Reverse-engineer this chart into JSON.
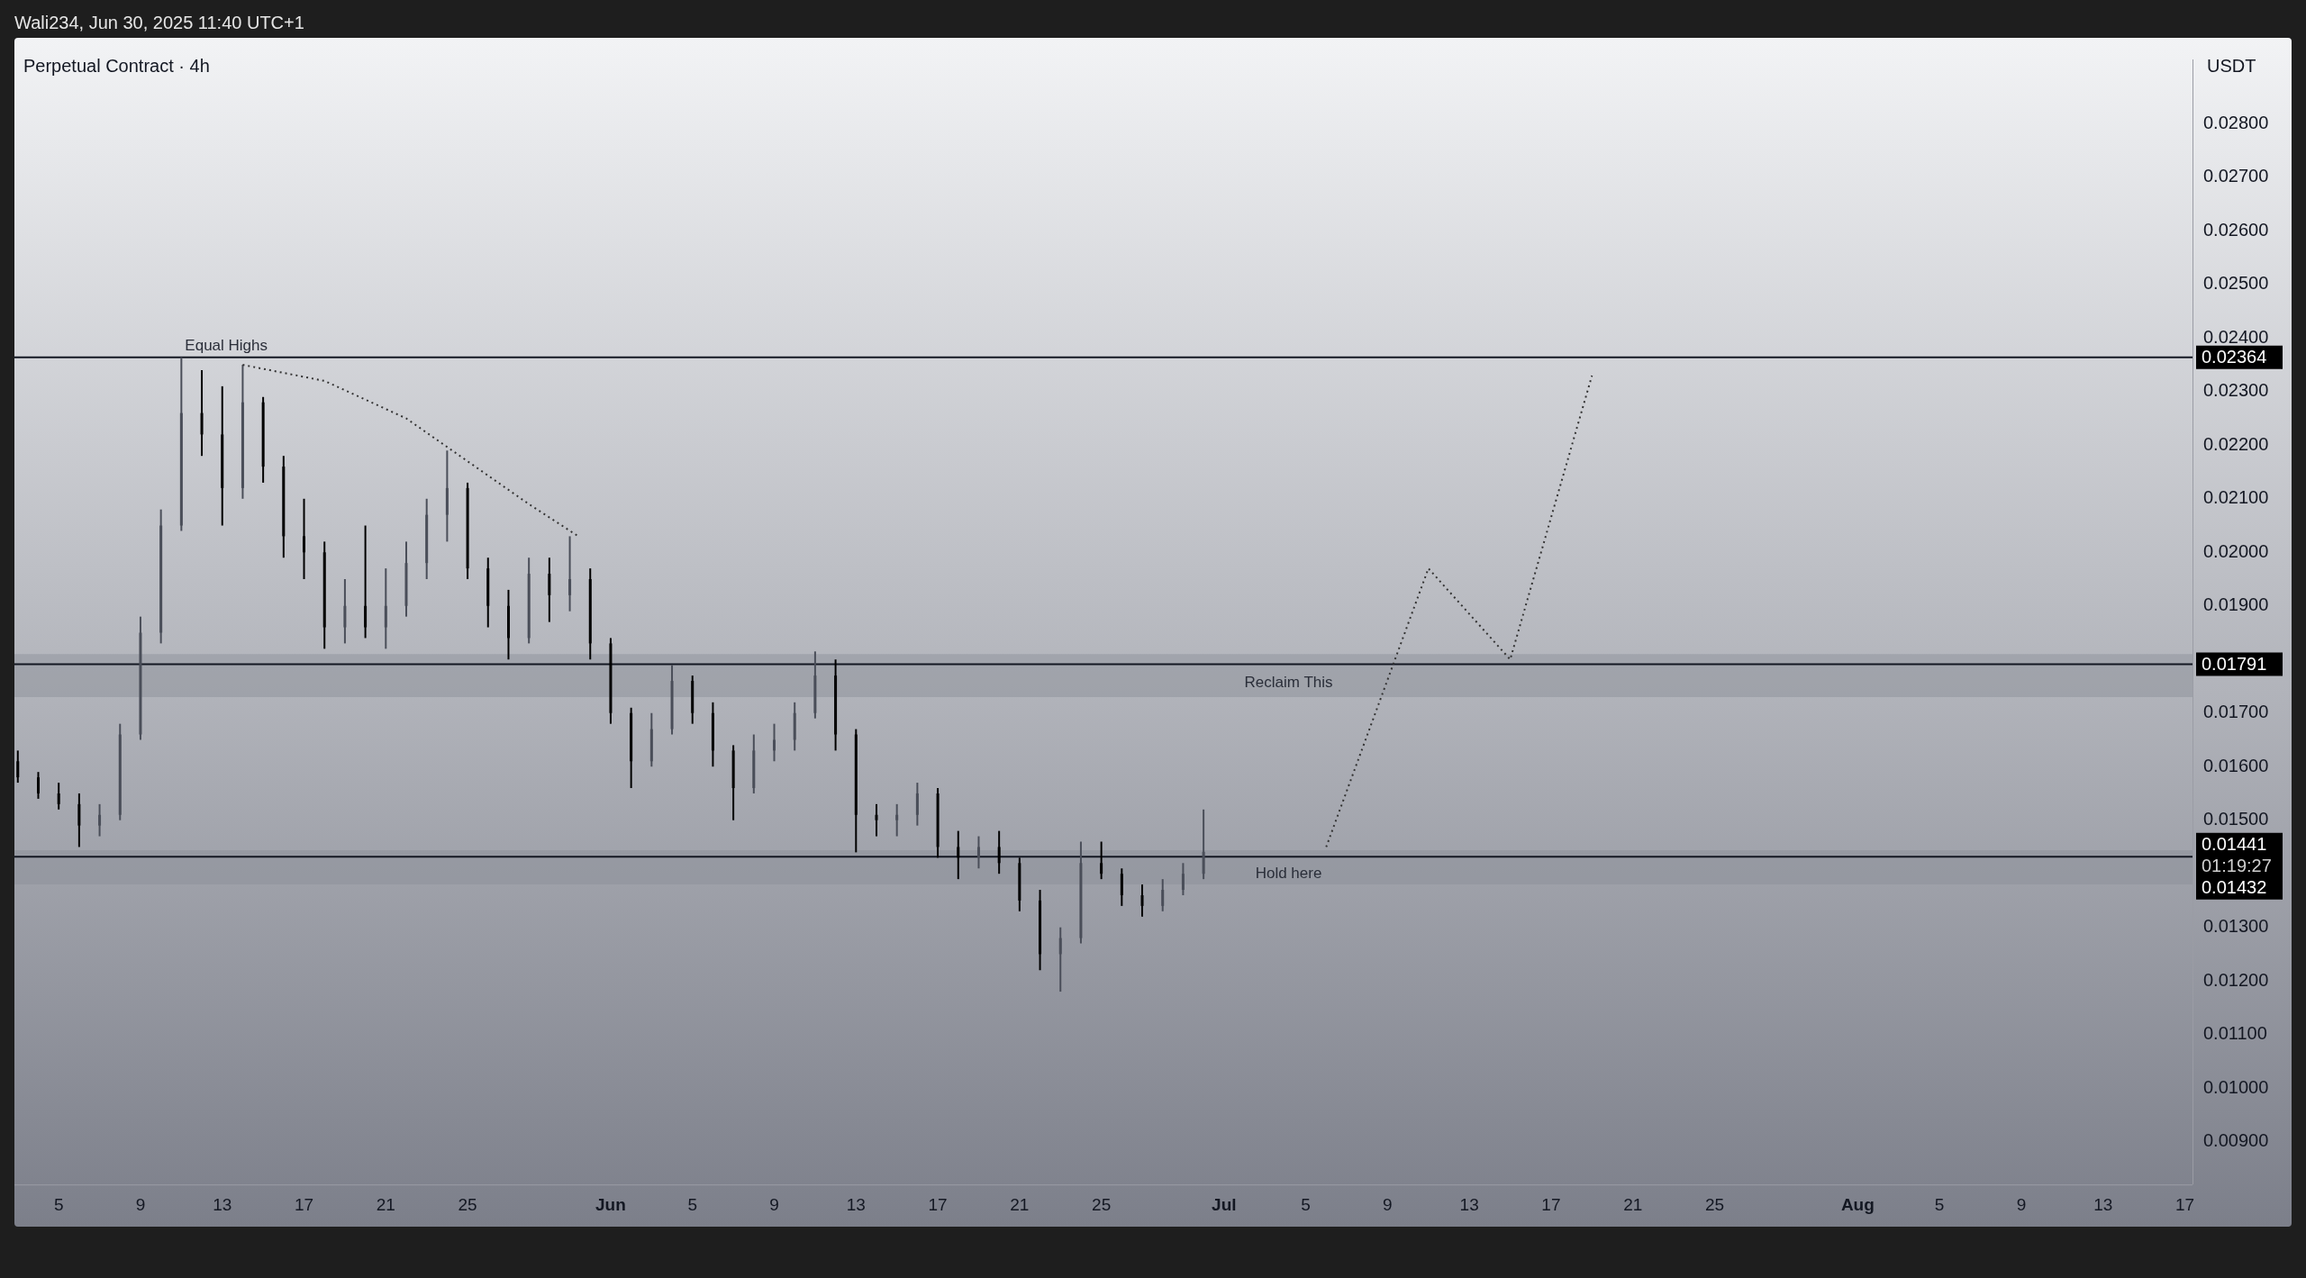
{
  "chart_data": {
    "type": "candlestick",
    "title": "Perpetual Contract · 4h",
    "subtitle": "Wali234, Jun 30, 2025 11:40 UTC+1",
    "ylabel": "USDT",
    "colors": [
      "#000000",
      "#000000",
      "#000000",
      "#000000",
      "#4a4e59",
      "#4a4e59",
      "#4a4e59",
      "#4a4e59",
      "#4a4e59",
      "#000000",
      "#000000",
      "#4a4e59",
      "#000000",
      "#000000",
      "#000000",
      "#000000",
      "#4a4e59",
      "#000000",
      "#4a4e59",
      "#4a4e59",
      "#4a4e59",
      "#4a4e59",
      "#000000",
      "#000000",
      "#000000",
      "#4a4e59",
      "#000000",
      "#4a4e59",
      "#000000",
      "#000000",
      "#000000",
      "#4a4e59",
      "#4a4e59",
      "#000000",
      "#000000",
      "#000000",
      "#4a4e59",
      "#4a4e59",
      "#4a4e59",
      "#4a4e59",
      "#000000",
      "#000000",
      "#000000",
      "#4a4e59",
      "#4a4e59",
      "#000000",
      "#000000",
      "#4a4e59",
      "#000000",
      "#000000",
      "#000000",
      "#4a4e59",
      "#4a4e59",
      "#000000",
      "#000000",
      "#000000",
      "#4a4e59",
      "#4a4e59",
      "#4a4e59"
    ],
    "x": [
      "2025-05-03",
      "2025-05-04",
      "2025-05-05",
      "2025-05-06",
      "2025-05-07",
      "2025-05-08",
      "2025-05-09",
      "2025-05-10",
      "2025-05-11",
      "2025-05-12",
      "2025-05-13",
      "2025-05-14",
      "2025-05-15",
      "2025-05-16",
      "2025-05-17",
      "2025-05-18",
      "2025-05-19",
      "2025-05-20",
      "2025-05-21",
      "2025-05-22",
      "2025-05-23",
      "2025-05-24",
      "2025-05-25",
      "2025-05-26",
      "2025-05-27",
      "2025-05-28",
      "2025-05-29",
      "2025-05-30",
      "2025-05-31",
      "2025-06-01",
      "2025-06-02",
      "2025-06-03",
      "2025-06-04",
      "2025-06-05",
      "2025-06-06",
      "2025-06-07",
      "2025-06-08",
      "2025-06-09",
      "2025-06-10",
      "2025-06-11",
      "2025-06-12",
      "2025-06-13",
      "2025-06-14",
      "2025-06-15",
      "2025-06-16",
      "2025-06-17",
      "2025-06-18",
      "2025-06-19",
      "2025-06-20",
      "2025-06-21",
      "2025-06-22",
      "2025-06-23",
      "2025-06-24",
      "2025-06-25",
      "2025-06-26",
      "2025-06-27",
      "2025-06-28",
      "2025-06-29",
      "2025-06-30"
    ],
    "ohlc": [
      [
        0.0161,
        0.0163,
        0.0157,
        0.0158
      ],
      [
        0.0158,
        0.0159,
        0.0154,
        0.0155
      ],
      [
        0.0155,
        0.0157,
        0.0152,
        0.0153
      ],
      [
        0.0153,
        0.0155,
        0.0145,
        0.0149
      ],
      [
        0.0149,
        0.0153,
        0.0147,
        0.0151
      ],
      [
        0.0151,
        0.0168,
        0.015,
        0.0166
      ],
      [
        0.0166,
        0.0188,
        0.0165,
        0.0185
      ],
      [
        0.0185,
        0.0208,
        0.0183,
        0.0205
      ],
      [
        0.0205,
        0.02364,
        0.0204,
        0.0226
      ],
      [
        0.0226,
        0.0234,
        0.0218,
        0.0222
      ],
      [
        0.0222,
        0.0231,
        0.0205,
        0.0212
      ],
      [
        0.0212,
        0.0235,
        0.021,
        0.0228
      ],
      [
        0.0228,
        0.0229,
        0.0213,
        0.0216
      ],
      [
        0.0216,
        0.0218,
        0.0199,
        0.0203
      ],
      [
        0.0203,
        0.021,
        0.0195,
        0.02
      ],
      [
        0.02,
        0.0202,
        0.0182,
        0.0186
      ],
      [
        0.0186,
        0.0195,
        0.0183,
        0.019
      ],
      [
        0.019,
        0.0205,
        0.0184,
        0.0186
      ],
      [
        0.0186,
        0.0197,
        0.0182,
        0.019
      ],
      [
        0.019,
        0.0202,
        0.0188,
        0.0198
      ],
      [
        0.0198,
        0.021,
        0.0195,
        0.0207
      ],
      [
        0.0207,
        0.0219,
        0.0202,
        0.0212
      ],
      [
        0.0212,
        0.0213,
        0.0195,
        0.0197
      ],
      [
        0.0197,
        0.0199,
        0.0186,
        0.019
      ],
      [
        0.019,
        0.0193,
        0.018,
        0.0184
      ],
      [
        0.0184,
        0.0199,
        0.0183,
        0.0196
      ],
      [
        0.0196,
        0.0199,
        0.0187,
        0.0192
      ],
      [
        0.0192,
        0.0203,
        0.0189,
        0.0195
      ],
      [
        0.0195,
        0.0197,
        0.018,
        0.0183
      ],
      [
        0.0183,
        0.0184,
        0.0168,
        0.017
      ],
      [
        0.017,
        0.0171,
        0.0156,
        0.0161
      ],
      [
        0.0161,
        0.017,
        0.016,
        0.0167
      ],
      [
        0.0167,
        0.0179,
        0.0166,
        0.0176
      ],
      [
        0.0176,
        0.0177,
        0.0168,
        0.017
      ],
      [
        0.017,
        0.0172,
        0.016,
        0.0163
      ],
      [
        0.0163,
        0.0164,
        0.015,
        0.0156
      ],
      [
        0.0156,
        0.0166,
        0.0155,
        0.0163
      ],
      [
        0.0163,
        0.0168,
        0.0161,
        0.0165
      ],
      [
        0.0165,
        0.0172,
        0.0163,
        0.017
      ],
      [
        0.017,
        0.01815,
        0.0169,
        0.0177
      ],
      [
        0.0177,
        0.018,
        0.0163,
        0.0166
      ],
      [
        0.0166,
        0.0167,
        0.0144,
        0.0151
      ],
      [
        0.0151,
        0.0153,
        0.0147,
        0.015
      ],
      [
        0.015,
        0.0153,
        0.0147,
        0.0151
      ],
      [
        0.0151,
        0.0157,
        0.0149,
        0.0155
      ],
      [
        0.0155,
        0.0156,
        0.0143,
        0.0145
      ],
      [
        0.0145,
        0.0148,
        0.0139,
        0.0143
      ],
      [
        0.0143,
        0.0147,
        0.0141,
        0.0145
      ],
      [
        0.0145,
        0.0148,
        0.014,
        0.0142
      ],
      [
        0.0142,
        0.0143,
        0.0133,
        0.0135
      ],
      [
        0.0135,
        0.0137,
        0.0122,
        0.0125
      ],
      [
        0.0125,
        0.013,
        0.0118,
        0.0128
      ],
      [
        0.0128,
        0.0146,
        0.0127,
        0.0142
      ],
      [
        0.0142,
        0.0146,
        0.0139,
        0.014
      ],
      [
        0.014,
        0.0141,
        0.0134,
        0.0136
      ],
      [
        0.0136,
        0.0138,
        0.0132,
        0.0134
      ],
      [
        0.0134,
        0.0139,
        0.0133,
        0.0137
      ],
      [
        0.0137,
        0.0142,
        0.0136,
        0.014
      ],
      [
        0.014,
        0.0152,
        0.0139,
        0.01441
      ]
    ],
    "series": [
      {
        "type": "line",
        "x": [
          "2025-05-14",
          "2025-05-18",
          "2025-05-22",
          "2025-05-25",
          "2025-05-28",
          "2025-05-30T10:00"
        ],
        "values": [
          0.0235,
          0.0232,
          0.0225,
          0.0217,
          0.0209,
          0.0203
        ],
        "color": "#333333",
        "line_style": "dotted"
      },
      {
        "type": "line",
        "x": [
          "2025-07-06",
          "2025-07-11",
          "2025-07-15",
          "2025-07-19"
        ],
        "values": [
          0.0145,
          0.0197,
          0.018,
          0.0233
        ],
        "color": "#333333",
        "line_style": "dotted"
      }
    ],
    "xlim": [
      "2025-05-02T20:00",
      "2025-08-17T09:00"
    ],
    "xticks": [
      {
        "value": "2025-05-05",
        "label": "5"
      },
      {
        "value": "2025-05-09",
        "label": "9"
      },
      {
        "value": "2025-05-13",
        "label": "13"
      },
      {
        "value": "2025-05-17",
        "label": "17"
      },
      {
        "value": "2025-05-21",
        "label": "21"
      },
      {
        "value": "2025-05-25",
        "label": "25"
      },
      {
        "value": "2025-06-01",
        "label": "Jun"
      },
      {
        "value": "2025-06-05",
        "label": "5"
      },
      {
        "value": "2025-06-09",
        "label": "9"
      },
      {
        "value": "2025-06-13",
        "label": "13"
      },
      {
        "value": "2025-06-17",
        "label": "17"
      },
      {
        "value": "2025-06-21",
        "label": "21"
      },
      {
        "value": "2025-06-25",
        "label": "25"
      },
      {
        "value": "2025-07-01",
        "label": "Jul"
      },
      {
        "value": "2025-07-05",
        "label": "5"
      },
      {
        "value": "2025-07-09",
        "label": "9"
      },
      {
        "value": "2025-07-13",
        "label": "13"
      },
      {
        "value": "2025-07-17",
        "label": "17"
      },
      {
        "value": "2025-07-21",
        "label": "21"
      },
      {
        "value": "2025-07-25",
        "label": "25"
      },
      {
        "value": "2025-08-01",
        "label": "Aug"
      },
      {
        "value": "2025-08-05",
        "label": "5"
      },
      {
        "value": "2025-08-09",
        "label": "9"
      },
      {
        "value": "2025-08-13",
        "label": "13"
      },
      {
        "value": "2025-08-17",
        "label": "17"
      }
    ],
    "ylim": [
      0.0082,
      0.0292
    ],
    "yticks": [
      {
        "value": 0.009,
        "label": "0.00900"
      },
      {
        "value": 0.01,
        "label": "0.01000"
      },
      {
        "value": 0.011,
        "label": "0.01100"
      },
      {
        "value": 0.012,
        "label": "0.01200"
      },
      {
        "value": 0.013,
        "label": "0.01300"
      },
      {
        "value": 0.015,
        "label": "0.01500"
      },
      {
        "value": 0.016,
        "label": "0.01600"
      },
      {
        "value": 0.017,
        "label": "0.01700"
      },
      {
        "value": 0.019,
        "label": "0.01900"
      },
      {
        "value": 0.02,
        "label": "0.02000"
      },
      {
        "value": 0.021,
        "label": "0.02100"
      },
      {
        "value": 0.022,
        "label": "0.02200"
      },
      {
        "value": 0.023,
        "label": "0.02300"
      },
      {
        "value": 0.024,
        "label": "0.02400"
      },
      {
        "value": 0.025,
        "label": "0.02500"
      },
      {
        "value": 0.026,
        "label": "0.02600"
      },
      {
        "value": 0.027,
        "label": "0.02700"
      },
      {
        "value": 0.028,
        "label": "0.02800"
      }
    ],
    "ref_lines": [
      {
        "axis": "y",
        "value": 0.02364,
        "label": "0.02364",
        "color": "#131722"
      },
      {
        "axis": "y",
        "value": 0.01791,
        "label": "0.01791",
        "color": "#131722"
      },
      {
        "axis": "y",
        "value": 0.01432,
        "label": "0.01432",
        "color": "#131722"
      }
    ],
    "bands": [
      {
        "axis": "y",
        "from": 0.0173,
        "to": 0.0181,
        "label": "Reclaim This",
        "color": "#8a8d96"
      },
      {
        "axis": "y",
        "from": 0.0138,
        "to": 0.01444,
        "label": "Hold here",
        "color": "#8a8d96"
      }
    ],
    "annotations": [
      {
        "text": "Equal Highs",
        "x": "2025-05-11",
        "y": 0.02364
      },
      "0.01441",
      "01:19:27"
    ],
    "grid": false,
    "legend": false
  }
}
